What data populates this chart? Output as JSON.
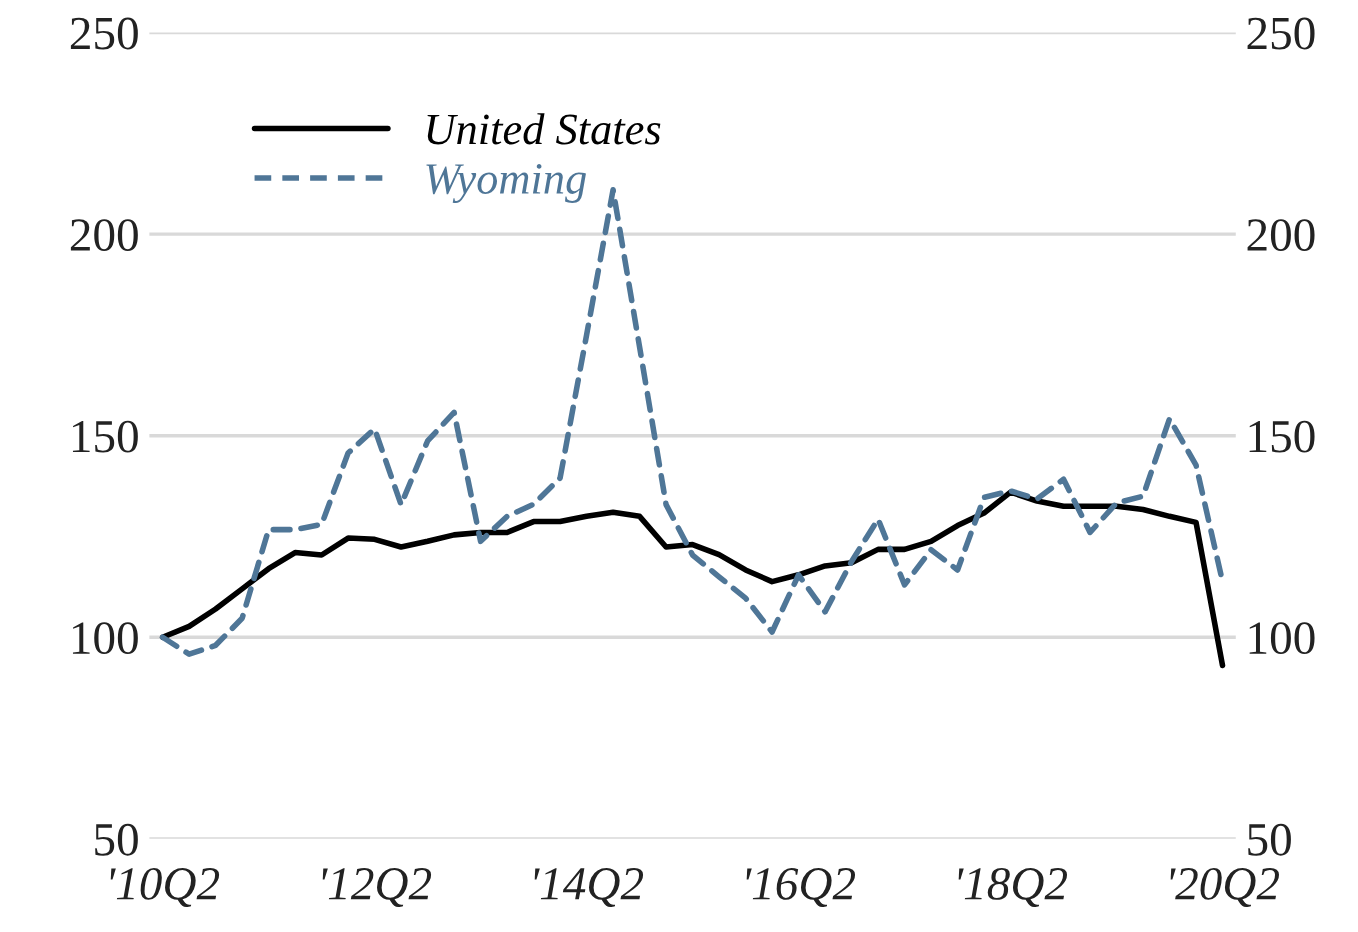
{
  "chart_data": {
    "type": "line",
    "categories": [
      "'10Q2",
      null,
      null,
      null,
      null,
      null,
      null,
      null,
      "'12Q2",
      null,
      null,
      null,
      null,
      null,
      null,
      null,
      "'14Q2",
      null,
      null,
      null,
      null,
      null,
      null,
      null,
      "'16Q2",
      null,
      null,
      null,
      null,
      null,
      null,
      null,
      "'18Q2",
      null,
      null,
      null,
      null,
      null,
      null,
      null,
      "'20Q2"
    ],
    "series": [
      {
        "name": "United States",
        "color": "#000000",
        "line_style": "solid",
        "values": [
          100,
          102.7,
          107,
          112,
          117,
          121,
          120.4,
          124.6,
          124.3,
          122.4,
          123.8,
          125.4,
          126,
          126,
          128.7,
          128.7,
          130,
          131,
          130,
          122.4,
          123,
          120.5,
          116.7,
          113.8,
          115.5,
          117.7,
          118.5,
          121.8,
          121.8,
          123.8,
          127.7,
          130.8,
          136,
          133.8,
          132.5,
          132.5,
          132.5,
          131.7,
          130,
          128.5,
          93
        ]
      },
      {
        "name": "Wyoming",
        "color": "#4f7697",
        "line_style": "dashed",
        "values": [
          100,
          95.8,
          98,
          104.7,
          126.7,
          126.7,
          128,
          145.7,
          151.7,
          132.9,
          148.7,
          155.8,
          123.8,
          130,
          133,
          139.5,
          175,
          211,
          172,
          132.9,
          120.4,
          115,
          109.7,
          101.3,
          115.5,
          106.3,
          118.8,
          129.3,
          113,
          121.7,
          116.7,
          134.7,
          136.3,
          134.3,
          139.2,
          126,
          133.3,
          135,
          154.2,
          142.7,
          113.8
        ]
      }
    ],
    "ylim": [
      50,
      250
    ],
    "yticks": [
      50,
      100,
      150,
      200,
      250
    ],
    "y2lim": [
      50,
      250
    ],
    "y2ticks": [
      50,
      100,
      150,
      200,
      250
    ],
    "grid": "y",
    "legend": "top left"
  }
}
